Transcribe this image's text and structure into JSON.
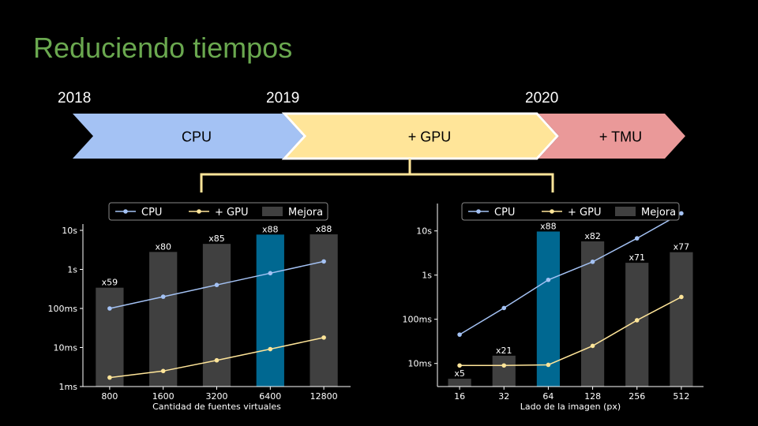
{
  "slide": {
    "title": "Reduciendo tiempos",
    "years": [
      "2018",
      "2019",
      "2020"
    ]
  },
  "timeline": {
    "stages": [
      {
        "label": "CPU",
        "color": "#a4c2f4"
      },
      {
        "label": "+ GPU",
        "color": "#ffe599"
      },
      {
        "label": "+ TMU",
        "color": "#ea9999"
      }
    ],
    "bracket_color": "#ffe599"
  },
  "chart_data": [
    {
      "type": "bar",
      "categories": [
        "800",
        "1600",
        "3200",
        "6400",
        "12800"
      ],
      "xlabel": "Cantidad de fuentes virtuales",
      "ylabel": "",
      "y_scale": "log",
      "ylim": [
        "1ms",
        "10s"
      ],
      "y_ticks": [
        "1ms",
        "10ms",
        "100ms",
        "1s",
        "10s"
      ],
      "grid": false,
      "legend": "top-center",
      "series": [
        {
          "name": "CPU",
          "kind": "line",
          "color": "#a4c2f4",
          "unit": "s",
          "values": [
            0.1,
            0.2,
            0.4,
            0.8,
            1.6
          ]
        },
        {
          "name": "+ GPU",
          "kind": "line",
          "color": "#ffe599",
          "unit": "s",
          "values": [
            0.0017,
            0.0025,
            0.0047,
            0.0091,
            0.018
          ]
        },
        {
          "name": "Mejora",
          "kind": "bar",
          "color": "#404040",
          "highlight_color": "#006891",
          "highlight_index": 3,
          "unit": "s",
          "values": [
            0.34,
            2.8,
            4.5,
            7.8,
            7.9
          ]
        }
      ],
      "bar_labels": [
        "x59",
        "x80",
        "x85",
        "x88",
        "x88"
      ]
    },
    {
      "type": "bar",
      "categories": [
        "16",
        "32",
        "64",
        "128",
        "256",
        "512"
      ],
      "xlabel": "Lado de la imagen (px)",
      "ylabel": "",
      "y_scale": "log",
      "ylim": [
        "3ms",
        "30s"
      ],
      "y_ticks": [
        "10ms",
        "100ms",
        "1s",
        "10s"
      ],
      "grid": false,
      "legend": "top-center",
      "series": [
        {
          "name": "CPU",
          "kind": "line",
          "color": "#a4c2f4",
          "unit": "s",
          "values": [
            0.045,
            0.18,
            0.78,
            2.0,
            6.8,
            25.0
          ]
        },
        {
          "name": "+ GPU",
          "kind": "line",
          "color": "#ffe599",
          "unit": "s",
          "values": [
            0.009,
            0.009,
            0.0093,
            0.025,
            0.095,
            0.32
          ]
        },
        {
          "name": "Mejora",
          "kind": "bar",
          "color": "#404040",
          "highlight_color": "#006891",
          "highlight_index": 2,
          "unit": "s",
          "values": [
            0.0045,
            0.015,
            9.7,
            5.8,
            1.9,
            3.3
          ]
        }
      ],
      "bar_labels": [
        "x5",
        "x21",
        "x88",
        "x82",
        "x71",
        "x77"
      ]
    }
  ]
}
